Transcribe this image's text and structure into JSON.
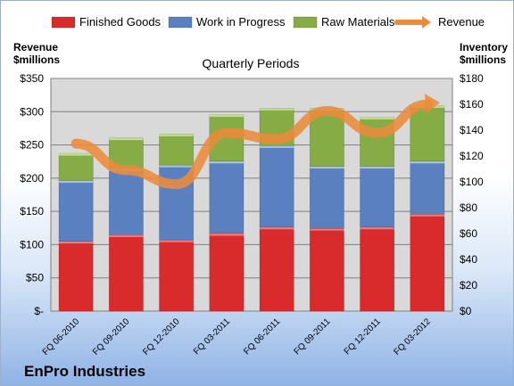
{
  "company": "EnPro Industries",
  "subtitle": "Quarterly Periods",
  "left_axis_label": [
    "Revenue",
    "$millions"
  ],
  "right_axis_label": [
    "Inventory",
    "$millions"
  ],
  "colors": {
    "finished_goods": "#d92b2b",
    "work_in_progress": "#5a80c0",
    "raw_materials": "#86ad45",
    "revenue": "#ec8b3a"
  },
  "chart_data": {
    "type": "bar",
    "stacked": true,
    "title": "Quarterly Periods",
    "categories": [
      "FQ 06-2010",
      "FQ 09-2010",
      "FQ 12-2010",
      "FQ 03-2011",
      "FQ 06-2011",
      "FQ 09-2011",
      "FQ 12-2011",
      "FQ 03-2012"
    ],
    "series": [
      {
        "name": "Finished Goods",
        "axis": "right",
        "values": [
          54,
          59,
          55,
          60,
          65,
          64,
          65,
          75
        ]
      },
      {
        "name": "Work in Progress",
        "axis": "right",
        "values": [
          47,
          51,
          58,
          56,
          63,
          48,
          47,
          41
        ]
      },
      {
        "name": "Raw Materials",
        "axis": "right",
        "values": [
          21,
          24,
          24,
          36,
          29,
          45,
          38,
          43
        ]
      },
      {
        "name": "Revenue",
        "type": "line",
        "axis": "left",
        "values": [
          252,
          212,
          191,
          268,
          259,
          301,
          268,
          311
        ]
      }
    ],
    "y_left": {
      "label": "Revenue $millions",
      "range": [
        0,
        350
      ],
      "ticks": [
        "$-",
        "$50",
        "$100",
        "$150",
        "$200",
        "$250",
        "$300",
        "$350"
      ]
    },
    "y_right": {
      "label": "Inventory $millions",
      "range": [
        0,
        180
      ],
      "ticks": [
        "$0",
        "$20",
        "$40",
        "$60",
        "$80",
        "$100",
        "$120",
        "$140",
        "$160",
        "$180"
      ]
    },
    "grid": true,
    "legend": "top"
  }
}
